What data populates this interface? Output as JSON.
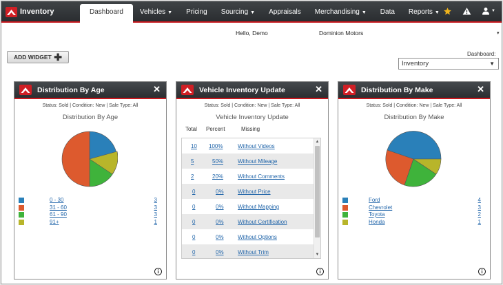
{
  "nav": {
    "brand": "Inventory",
    "menu": [
      {
        "label": "Dashboard",
        "caret": ""
      },
      {
        "label": "Vehicles",
        "caret": "▼"
      },
      {
        "label": "Pricing",
        "caret": ""
      },
      {
        "label": "Sourcing",
        "caret": "▼"
      },
      {
        "label": "Appraisals",
        "caret": ""
      },
      {
        "label": "Merchandising",
        "caret": "▼"
      },
      {
        "label": "Data",
        "caret": ""
      },
      {
        "label": "Reports",
        "caret": "▼"
      }
    ],
    "icons": [
      "star-icon",
      "warning-icon",
      "user-icon"
    ],
    "user_caret": "▼",
    "accent": "#c8181e",
    "star_color": "#f2b51c"
  },
  "header": {
    "greeting": "Hello, Demo",
    "dealer": "Dominion Motors",
    "dealer_caret": "▾"
  },
  "toolbar": {
    "add_widget": "ADD WIDGET",
    "plus": "✚",
    "dashboard_label": "Dashboard:",
    "dashboard_value": "Inventory",
    "select_caret": "▼"
  },
  "widgets": {
    "age": {
      "title": "Distribution By Age",
      "close": "✕",
      "status": "Status: Sold | Condition: New | Sale Type: All",
      "subtitle": "Distribution By Age",
      "info": "i",
      "legend": [
        {
          "label": "0 - 30",
          "value": "3",
          "color": "#2a80b9"
        },
        {
          "label": "31 - 60",
          "value": "3",
          "color": "#dd5a2e"
        },
        {
          "label": "61 - 90",
          "value": "3",
          "color": "#3fb33b"
        },
        {
          "label": "91+",
          "value": "1",
          "color": "#b8b52a"
        }
      ]
    },
    "inventory": {
      "title": "Vehicle Inventory Update",
      "close": "✕",
      "status": "Status: Sold | Condition: New | Sale Type: All",
      "subtitle": "Vehicle Inventory Update",
      "info": "i",
      "columns": [
        "Total",
        "Percent",
        "Missing"
      ],
      "rows": [
        {
          "total": "10",
          "percent": "100%",
          "missing": "Without Videos"
        },
        {
          "total": "5",
          "percent": "50%",
          "missing": "Without Mileage"
        },
        {
          "total": "2",
          "percent": "20%",
          "missing": "Without Comments"
        },
        {
          "total": "0",
          "percent": "0%",
          "missing": "Without Price"
        },
        {
          "total": "0",
          "percent": "0%",
          "missing": "Without Mapping"
        },
        {
          "total": "0",
          "percent": "0%",
          "missing": "Without Certification"
        },
        {
          "total": "0",
          "percent": "0%",
          "missing": "Without Options"
        },
        {
          "total": "0",
          "percent": "0%",
          "missing": "Without Trim"
        }
      ],
      "scroll_up": "▲",
      "scroll_down": "▼"
    },
    "make": {
      "title": "Distribution By Make",
      "close": "✕",
      "status": "Status: Sold | Condition: New | Sale Type: All",
      "subtitle": "Distribution By Make",
      "info": "i",
      "legend": [
        {
          "label": "Ford",
          "value": "4",
          "color": "#2a80b9"
        },
        {
          "label": "Chevrolet",
          "value": "3",
          "color": "#dd5a2e"
        },
        {
          "label": "Toyota",
          "value": "2",
          "color": "#3fb33b"
        },
        {
          "label": "Honda",
          "value": "1",
          "color": "#b8b52a"
        }
      ]
    }
  }
}
